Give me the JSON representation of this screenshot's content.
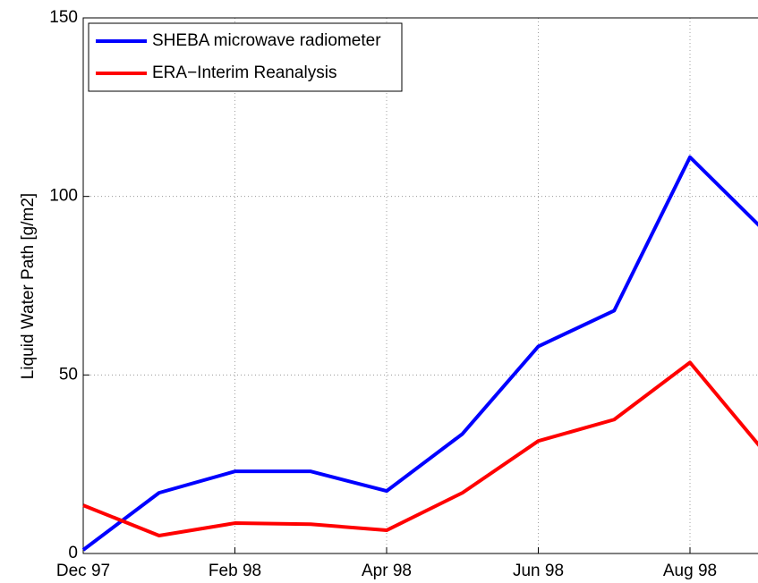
{
  "chart_data": {
    "type": "line",
    "y_label": "Liquid Water Path [g/m2]",
    "categories": [
      "Dec 97",
      null,
      "Feb 98",
      null,
      "Apr 98",
      null,
      "Jun 98",
      null,
      "Aug 98",
      null
    ],
    "series": [
      {
        "name": "SHEBA microwave radiometer",
        "color": "#0000ff",
        "values": [
          1,
          17,
          23,
          23,
          17.5,
          33.5,
          58,
          68,
          111,
          90
        ]
      },
      {
        "name": "ERA−Interim Reanalysis",
        "color": "#ff0000",
        "values": [
          13.5,
          5,
          8.5,
          8.2,
          6.5,
          17,
          31.5,
          37.5,
          53.5,
          28
        ]
      }
    ],
    "ylim": [
      0,
      150
    ],
    "yticks": [
      0,
      50,
      100,
      150
    ],
    "grid": true,
    "legend": "upper left"
  }
}
